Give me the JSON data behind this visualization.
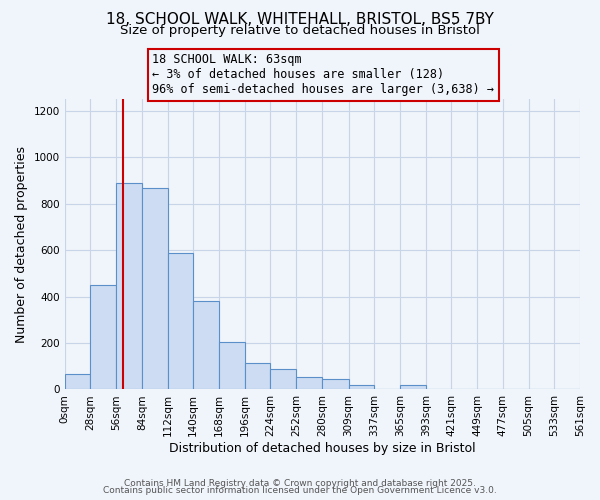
{
  "title1": "18, SCHOOL WALK, WHITEHALL, BRISTOL, BS5 7BY",
  "title2": "Size of property relative to detached houses in Bristol",
  "xlabel": "Distribution of detached houses by size in Bristol",
  "ylabel": "Number of detached properties",
  "bar_values": [
    65,
    450,
    890,
    870,
    590,
    380,
    205,
    115,
    90,
    55,
    45,
    20,
    0,
    20,
    0,
    0,
    0,
    0,
    0,
    0
  ],
  "bin_edges": [
    0,
    28,
    56,
    84,
    112,
    140,
    168,
    196,
    224,
    252,
    280,
    309,
    337,
    365,
    393,
    421,
    449,
    477,
    505,
    533,
    561
  ],
  "tick_labels": [
    "0sqm",
    "28sqm",
    "56sqm",
    "84sqm",
    "112sqm",
    "140sqm",
    "168sqm",
    "196sqm",
    "224sqm",
    "252sqm",
    "280sqm",
    "309sqm",
    "337sqm",
    "365sqm",
    "393sqm",
    "421sqm",
    "449sqm",
    "477sqm",
    "505sqm",
    "533sqm",
    "561sqm"
  ],
  "bar_color": "#cddcf3",
  "bar_edge_color": "#5b8fc9",
  "vline_x": 63,
  "vline_color": "#cc0000",
  "annotation_title": "18 SCHOOL WALK: 63sqm",
  "annotation_line1": "← 3% of detached houses are smaller (128)",
  "annotation_line2": "96% of semi-detached houses are larger (3,638) →",
  "annotation_box_edge": "#cc0000",
  "ylim": [
    0,
    1250
  ],
  "yticks": [
    0,
    200,
    400,
    600,
    800,
    1000,
    1200
  ],
  "footnote1": "Contains HM Land Registry data © Crown copyright and database right 2025.",
  "footnote2": "Contains public sector information licensed under the Open Government Licence v3.0.",
  "background_color": "#f0f4fb",
  "grid_color": "#c8d4e8",
  "title_fontsize": 11,
  "subtitle_fontsize": 9.5,
  "axis_label_fontsize": 9,
  "tick_fontsize": 7.5,
  "annotation_fontsize": 8.5,
  "footnote_fontsize": 6.5
}
